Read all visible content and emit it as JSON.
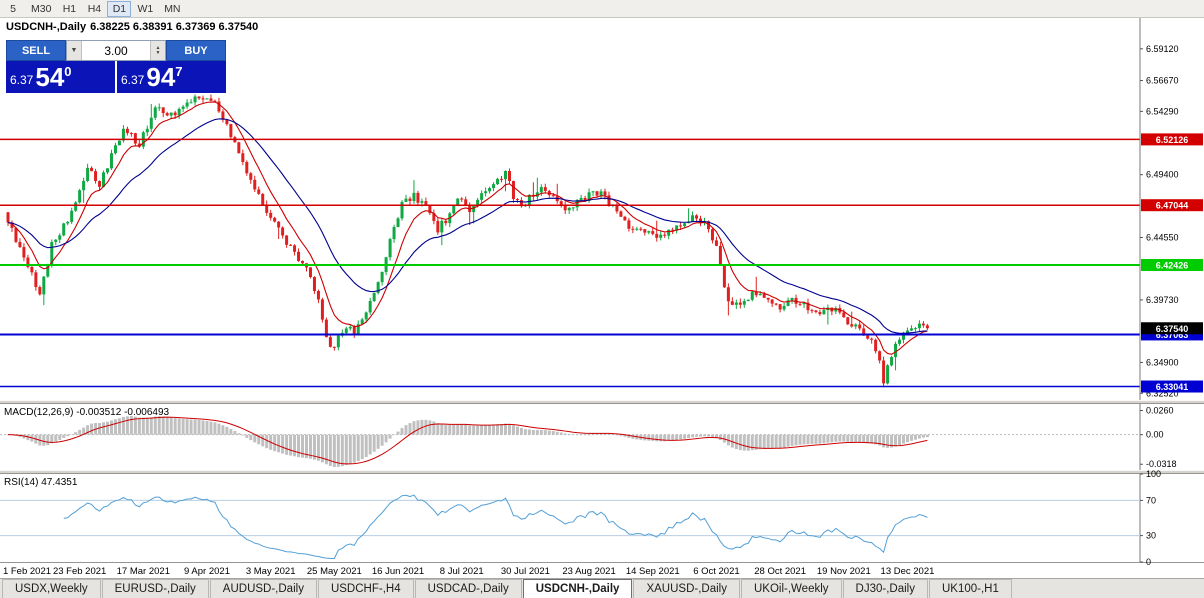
{
  "toolbar": {
    "timeframes": [
      {
        "label": "5",
        "active": false
      },
      {
        "label": "M30",
        "active": false
      },
      {
        "label": "H1",
        "active": false
      },
      {
        "label": "H4",
        "active": false
      },
      {
        "label": "D1",
        "active": true
      },
      {
        "label": "W1",
        "active": false
      },
      {
        "label": "MN",
        "active": false
      }
    ]
  },
  "trade_widget": {
    "sell_label": "SELL",
    "buy_label": "BUY",
    "volume": "3.00",
    "sell_price": {
      "small": "6.37",
      "big": "54",
      "sup": "0"
    },
    "buy_price": {
      "small": "6.37",
      "big": "94",
      "sup": "7"
    }
  },
  "chart_data": {
    "type": "candlestick",
    "symbol": "USDCNH-",
    "timeframe": "Daily",
    "header": {
      "symbol_text": "USDCNH-,Daily",
      "ohlc_text": "6.38225 6.38391 6.37369 6.37540"
    },
    "ohlc_display": {
      "open": "6.38225",
      "high": "6.38391",
      "low": "6.37369",
      "close": "6.37540"
    },
    "last_close": 6.3754,
    "price_range": {
      "top": 6.615,
      "bottom": 6.32
    },
    "num_candles": 232,
    "candles_per_label": 16,
    "x_labels": [
      "1 Feb 2021",
      "23 Feb 2021",
      "17 Mar 2021",
      "9 Apr 2021",
      "3 May 2021",
      "25 May 2021",
      "16 Jun 2021",
      "8 Jul 2021",
      "30 Jul 2021",
      "23 Aug 2021",
      "14 Sep 2021",
      "6 Oct 2021",
      "28 Oct 2021",
      "19 Nov 2021",
      "13 Dec 2021"
    ],
    "y_axis_labels": [
      "6.59120",
      "6.56670",
      "6.54290",
      "6.49400",
      "6.44550",
      "6.39730",
      "6.34900",
      "6.32520"
    ],
    "hlines": [
      {
        "price": 6.52126,
        "label": "6.52126",
        "color": "#d20000",
        "width": 1.5
      },
      {
        "price": 6.47044,
        "label": "6.47044",
        "color": "#d20000",
        "width": 1.5
      },
      {
        "price": 6.42426,
        "label": "6.42426",
        "color": "#00cc00",
        "width": 2
      },
      {
        "price": 6.37063,
        "label": "6.37063",
        "color": "#0000d2",
        "width": 2
      },
      {
        "price": 6.33041,
        "label": "6.33041",
        "color": "#0000d2",
        "width": 1.5
      }
    ],
    "current_price": {
      "value": 6.3754,
      "label": "6.37540",
      "color": "#000000"
    },
    "price_path": [
      [
        0,
        6.465
      ],
      [
        3,
        6.445
      ],
      [
        6,
        6.425
      ],
      [
        9,
        6.402
      ],
      [
        12,
        6.44
      ],
      [
        15,
        6.455
      ],
      [
        18,
        6.47
      ],
      [
        21,
        6.5
      ],
      [
        24,
        6.485
      ],
      [
        27,
        6.51
      ],
      [
        30,
        6.528
      ],
      [
        34,
        6.518
      ],
      [
        38,
        6.545
      ],
      [
        42,
        6.54
      ],
      [
        46,
        6.55
      ],
      [
        50,
        6.555
      ],
      [
        53,
        6.548
      ],
      [
        56,
        6.535
      ],
      [
        59,
        6.508
      ],
      [
        62,
        6.49
      ],
      [
        66,
        6.465
      ],
      [
        70,
        6.445
      ],
      [
        74,
        6.43
      ],
      [
        77,
        6.415
      ],
      [
        80,
        6.385
      ],
      [
        82,
        6.358
      ],
      [
        84,
        6.368
      ],
      [
        86,
        6.378
      ],
      [
        88,
        6.372
      ],
      [
        90,
        6.382
      ],
      [
        93,
        6.4
      ],
      [
        96,
        6.43
      ],
      [
        98,
        6.455
      ],
      [
        100,
        6.47
      ],
      [
        103,
        6.478
      ],
      [
        106,
        6.468
      ],
      [
        109,
        6.452
      ],
      [
        112,
        6.462
      ],
      [
        114,
        6.475
      ],
      [
        117,
        6.468
      ],
      [
        120,
        6.478
      ],
      [
        123,
        6.488
      ],
      [
        126,
        6.495
      ],
      [
        128,
        6.478
      ],
      [
        130,
        6.468
      ],
      [
        132,
        6.478
      ],
      [
        135,
        6.483
      ],
      [
        138,
        6.475
      ],
      [
        141,
        6.468
      ],
      [
        144,
        6.473
      ],
      [
        147,
        6.478
      ],
      [
        150,
        6.48
      ],
      [
        153,
        6.468
      ],
      [
        156,
        6.458
      ],
      [
        159,
        6.45
      ],
      [
        162,
        6.452
      ],
      [
        165,
        6.445
      ],
      [
        168,
        6.452
      ],
      [
        171,
        6.458
      ],
      [
        174,
        6.462
      ],
      [
        177,
        6.452
      ],
      [
        179,
        6.44
      ],
      [
        181,
        6.405
      ],
      [
        183,
        6.392
      ],
      [
        186,
        6.398
      ],
      [
        189,
        6.403
      ],
      [
        192,
        6.398
      ],
      [
        195,
        6.392
      ],
      [
        198,
        6.398
      ],
      [
        201,
        6.392
      ],
      [
        204,
        6.386
      ],
      [
        207,
        6.392
      ],
      [
        210,
        6.388
      ],
      [
        213,
        6.378
      ],
      [
        216,
        6.372
      ],
      [
        218,
        6.368
      ],
      [
        220,
        6.352
      ],
      [
        221,
        6.336
      ],
      [
        223,
        6.355
      ],
      [
        225,
        6.368
      ],
      [
        227,
        6.374
      ],
      [
        229,
        6.377
      ],
      [
        231,
        6.376
      ]
    ],
    "colors": {
      "up": "#0fa843",
      "down": "#e02020",
      "ma_fast": "#cc0000",
      "ma_slow": "#000090",
      "macd_hist": "#c0c0c0",
      "macd_signal": "#cc0000",
      "rsi": "#539fd6"
    },
    "indicators": [
      {
        "name": "MACD",
        "label": "MACD(12,26,9) -0.003512 -0.006493",
        "axis_labels": [
          {
            "text": "0.0260",
            "value": 0.026
          },
          {
            "text": "0.00",
            "value": 0
          },
          {
            "text": "-0.0318",
            "value": -0.0318
          }
        ]
      },
      {
        "name": "RSI",
        "label": "RSI(14) 47.4351",
        "levels": [
          70,
          30
        ],
        "axis_labels": [
          {
            "text": "100",
            "value": 100
          },
          {
            "text": "70",
            "value": 70
          },
          {
            "text": "30",
            "value": 30
          },
          {
            "text": "0",
            "value": 0
          }
        ]
      }
    ]
  },
  "tabbar": {
    "tabs": [
      {
        "label": "USDX,Weekly",
        "active": false
      },
      {
        "label": "EURUSD-,Daily",
        "active": false
      },
      {
        "label": "AUDUSD-,Daily",
        "active": false
      },
      {
        "label": "USDCHF-,H4",
        "active": false
      },
      {
        "label": "USDCAD-,Daily",
        "active": false
      },
      {
        "label": "USDCNH-,Daily",
        "active": true
      },
      {
        "label": "XAUUSD-,Daily",
        "active": false
      },
      {
        "label": "UKOil-,Weekly",
        "active": false
      },
      {
        "label": "DJ30-,Daily",
        "active": false
      },
      {
        "label": "UK100-,H1",
        "active": false
      }
    ]
  }
}
